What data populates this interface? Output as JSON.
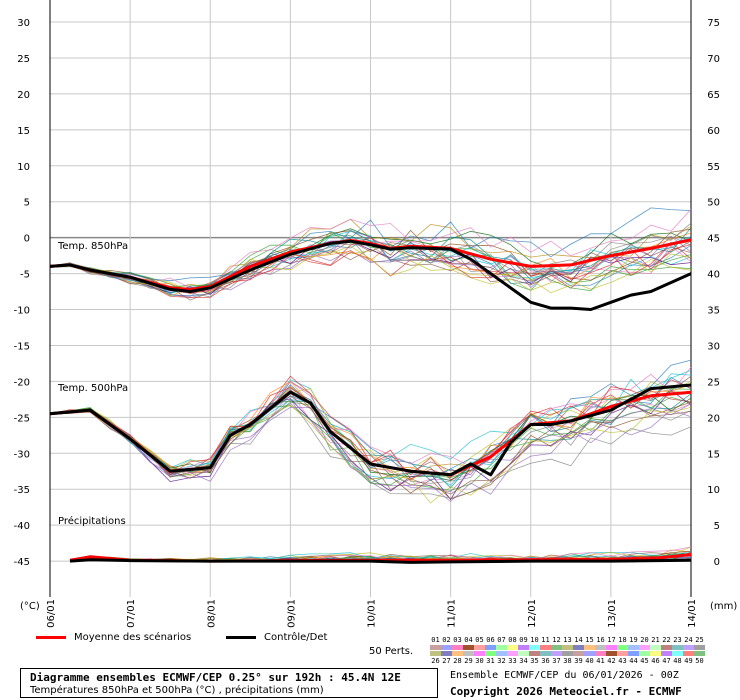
{
  "chart_data": {
    "type": "line",
    "axes": {
      "left_ticks": [
        "30",
        "25",
        "20",
        "15",
        "10",
        "5",
        "0",
        "-5",
        "-10",
        "-15",
        "-20",
        "-25",
        "-30",
        "-35",
        "-40",
        "-45"
      ],
      "right_ticks": [
        "75",
        "70",
        "65",
        "60",
        "55",
        "50",
        "45",
        "40",
        "35",
        "30",
        "25",
        "20",
        "15",
        "10",
        "5",
        "0"
      ],
      "x_ticks": [
        "06/01",
        "07/01",
        "08/01",
        "09/01",
        "10/01",
        "11/01",
        "12/01",
        "13/01",
        "14/01"
      ],
      "left_unit": "(°C)",
      "right_unit": "(mm)",
      "ylim_left": [
        -50,
        30
      ],
      "ylim_right": [
        0,
        75
      ],
      "grid": true
    },
    "annotations": {
      "t850": "Temp. 850hPa",
      "t500": "Temp. 500hPa",
      "precip": "Précipitations"
    },
    "series": [
      {
        "name": "Moyenne des scénarios",
        "color": "#ff0000",
        "group": "t850",
        "x": [
          0,
          0.25,
          0.5,
          1,
          1.5,
          1.75,
          2,
          2.5,
          3,
          3.5,
          3.75,
          4,
          4.25,
          4.5,
          5,
          5.5,
          6,
          6.5,
          7,
          7.5,
          8
        ],
        "values": [
          -4,
          -3.8,
          -4.5,
          -5.5,
          -7,
          -7.2,
          -6.8,
          -4,
          -2,
          -0.8,
          -0.4,
          -0.8,
          -1.5,
          -1.2,
          -1.5,
          -3,
          -4,
          -3.8,
          -2.5,
          -1.5,
          -0.3
        ]
      },
      {
        "name": "Contrôle/Det",
        "color": "#000000",
        "group": "t850",
        "x": [
          0,
          0.25,
          0.5,
          1,
          1.5,
          1.75,
          2,
          2.5,
          3,
          3.5,
          3.75,
          4,
          4.25,
          4.5,
          5,
          5.25,
          5.5,
          6,
          6.25,
          6.5,
          6.75,
          7,
          7.25,
          7.5,
          8
        ],
        "values": [
          -4,
          -3.8,
          -4.5,
          -5.5,
          -7.2,
          -7.5,
          -7,
          -4.5,
          -2.3,
          -0.8,
          -0.5,
          -1,
          -1.6,
          -1.4,
          -1.6,
          -3,
          -5,
          -9,
          -9.8,
          -9.8,
          -10,
          -9,
          -8,
          -7.5,
          -5
        ]
      },
      {
        "name": "Moyenne des scénarios",
        "color": "#ff0000",
        "group": "t500",
        "x": [
          0,
          0.5,
          1,
          1.5,
          2,
          2.25,
          2.5,
          3,
          3.25,
          3.5,
          4,
          4.5,
          5,
          5.5,
          6,
          6.5,
          7,
          7.5,
          8
        ],
        "values": [
          -24.5,
          -24,
          -28,
          -32.5,
          -32,
          -27.5,
          -26,
          -21.5,
          -23,
          -27,
          -31.5,
          -32.5,
          -33,
          -30.5,
          -26,
          -25.5,
          -23.5,
          -22,
          -21.5
        ]
      },
      {
        "name": "Contrôle/Det",
        "color": "#000000",
        "group": "t500",
        "x": [
          0,
          0.5,
          1,
          1.5,
          2,
          2.25,
          2.5,
          3,
          3.25,
          3.5,
          4,
          4.5,
          5,
          5.25,
          5.5,
          5.75,
          6,
          6.25,
          6.5,
          7,
          7.5,
          8
        ],
        "values": [
          -24.5,
          -24,
          -28,
          -32.5,
          -32,
          -27.5,
          -26,
          -21.5,
          -23,
          -27,
          -31.5,
          -32.5,
          -33,
          -31.5,
          -33,
          -28.5,
          -26,
          -26,
          -25.5,
          -24,
          -21,
          -20.5
        ]
      },
      {
        "name": "Moyenne des scénarios",
        "color": "#ff0000",
        "group": "precip",
        "x": [
          0.25,
          0.5,
          1,
          2,
          3,
          4,
          5,
          6,
          7,
          7.5,
          8
        ],
        "values": [
          0.2,
          1,
          0.2,
          0,
          0.1,
          0.2,
          0.2,
          0.3,
          0.4,
          0.6,
          1.5
        ]
      },
      {
        "name": "Contrôle/Det",
        "color": "#000000",
        "group": "precip",
        "x": [
          0.25,
          0.5,
          1,
          2,
          3,
          4,
          4.5,
          5,
          6,
          7,
          8
        ],
        "values": [
          0,
          0.3,
          0.1,
          0,
          0,
          0,
          -0.3,
          -0.2,
          0,
          0,
          0.2
        ]
      }
    ]
  },
  "legend": {
    "mean_label": "Moyenne des scénarios",
    "control_label": "Contrôle/Det",
    "perts_label": "50 Perts.",
    "pert_numbers_top": [
      "01",
      "02",
      "03",
      "04",
      "05",
      "06",
      "07",
      "08",
      "09",
      "10",
      "11",
      "12",
      "13",
      "14",
      "15",
      "16",
      "17",
      "18",
      "19",
      "20",
      "21",
      "22",
      "23",
      "24",
      "25"
    ],
    "pert_numbers_bottom": [
      "26",
      "27",
      "28",
      "29",
      "30",
      "31",
      "32",
      "33",
      "34",
      "35",
      "36",
      "37",
      "38",
      "39",
      "40",
      "41",
      "42",
      "43",
      "44",
      "45",
      "46",
      "47",
      "48",
      "49",
      "50"
    ]
  },
  "footer": {
    "title": "Diagramme ensembles ECMWF/CEP 0.25° sur 192h : 45.4N 12E",
    "subtitle": "Températures 850hPa et 500hPa (°C) , précipitations (mm)",
    "run_info": "Ensemble ECMWF/CEP du 06/01/2026 - 00Z",
    "copyright": "Copyright 2026 Meteociel.fr - ECMWF"
  }
}
